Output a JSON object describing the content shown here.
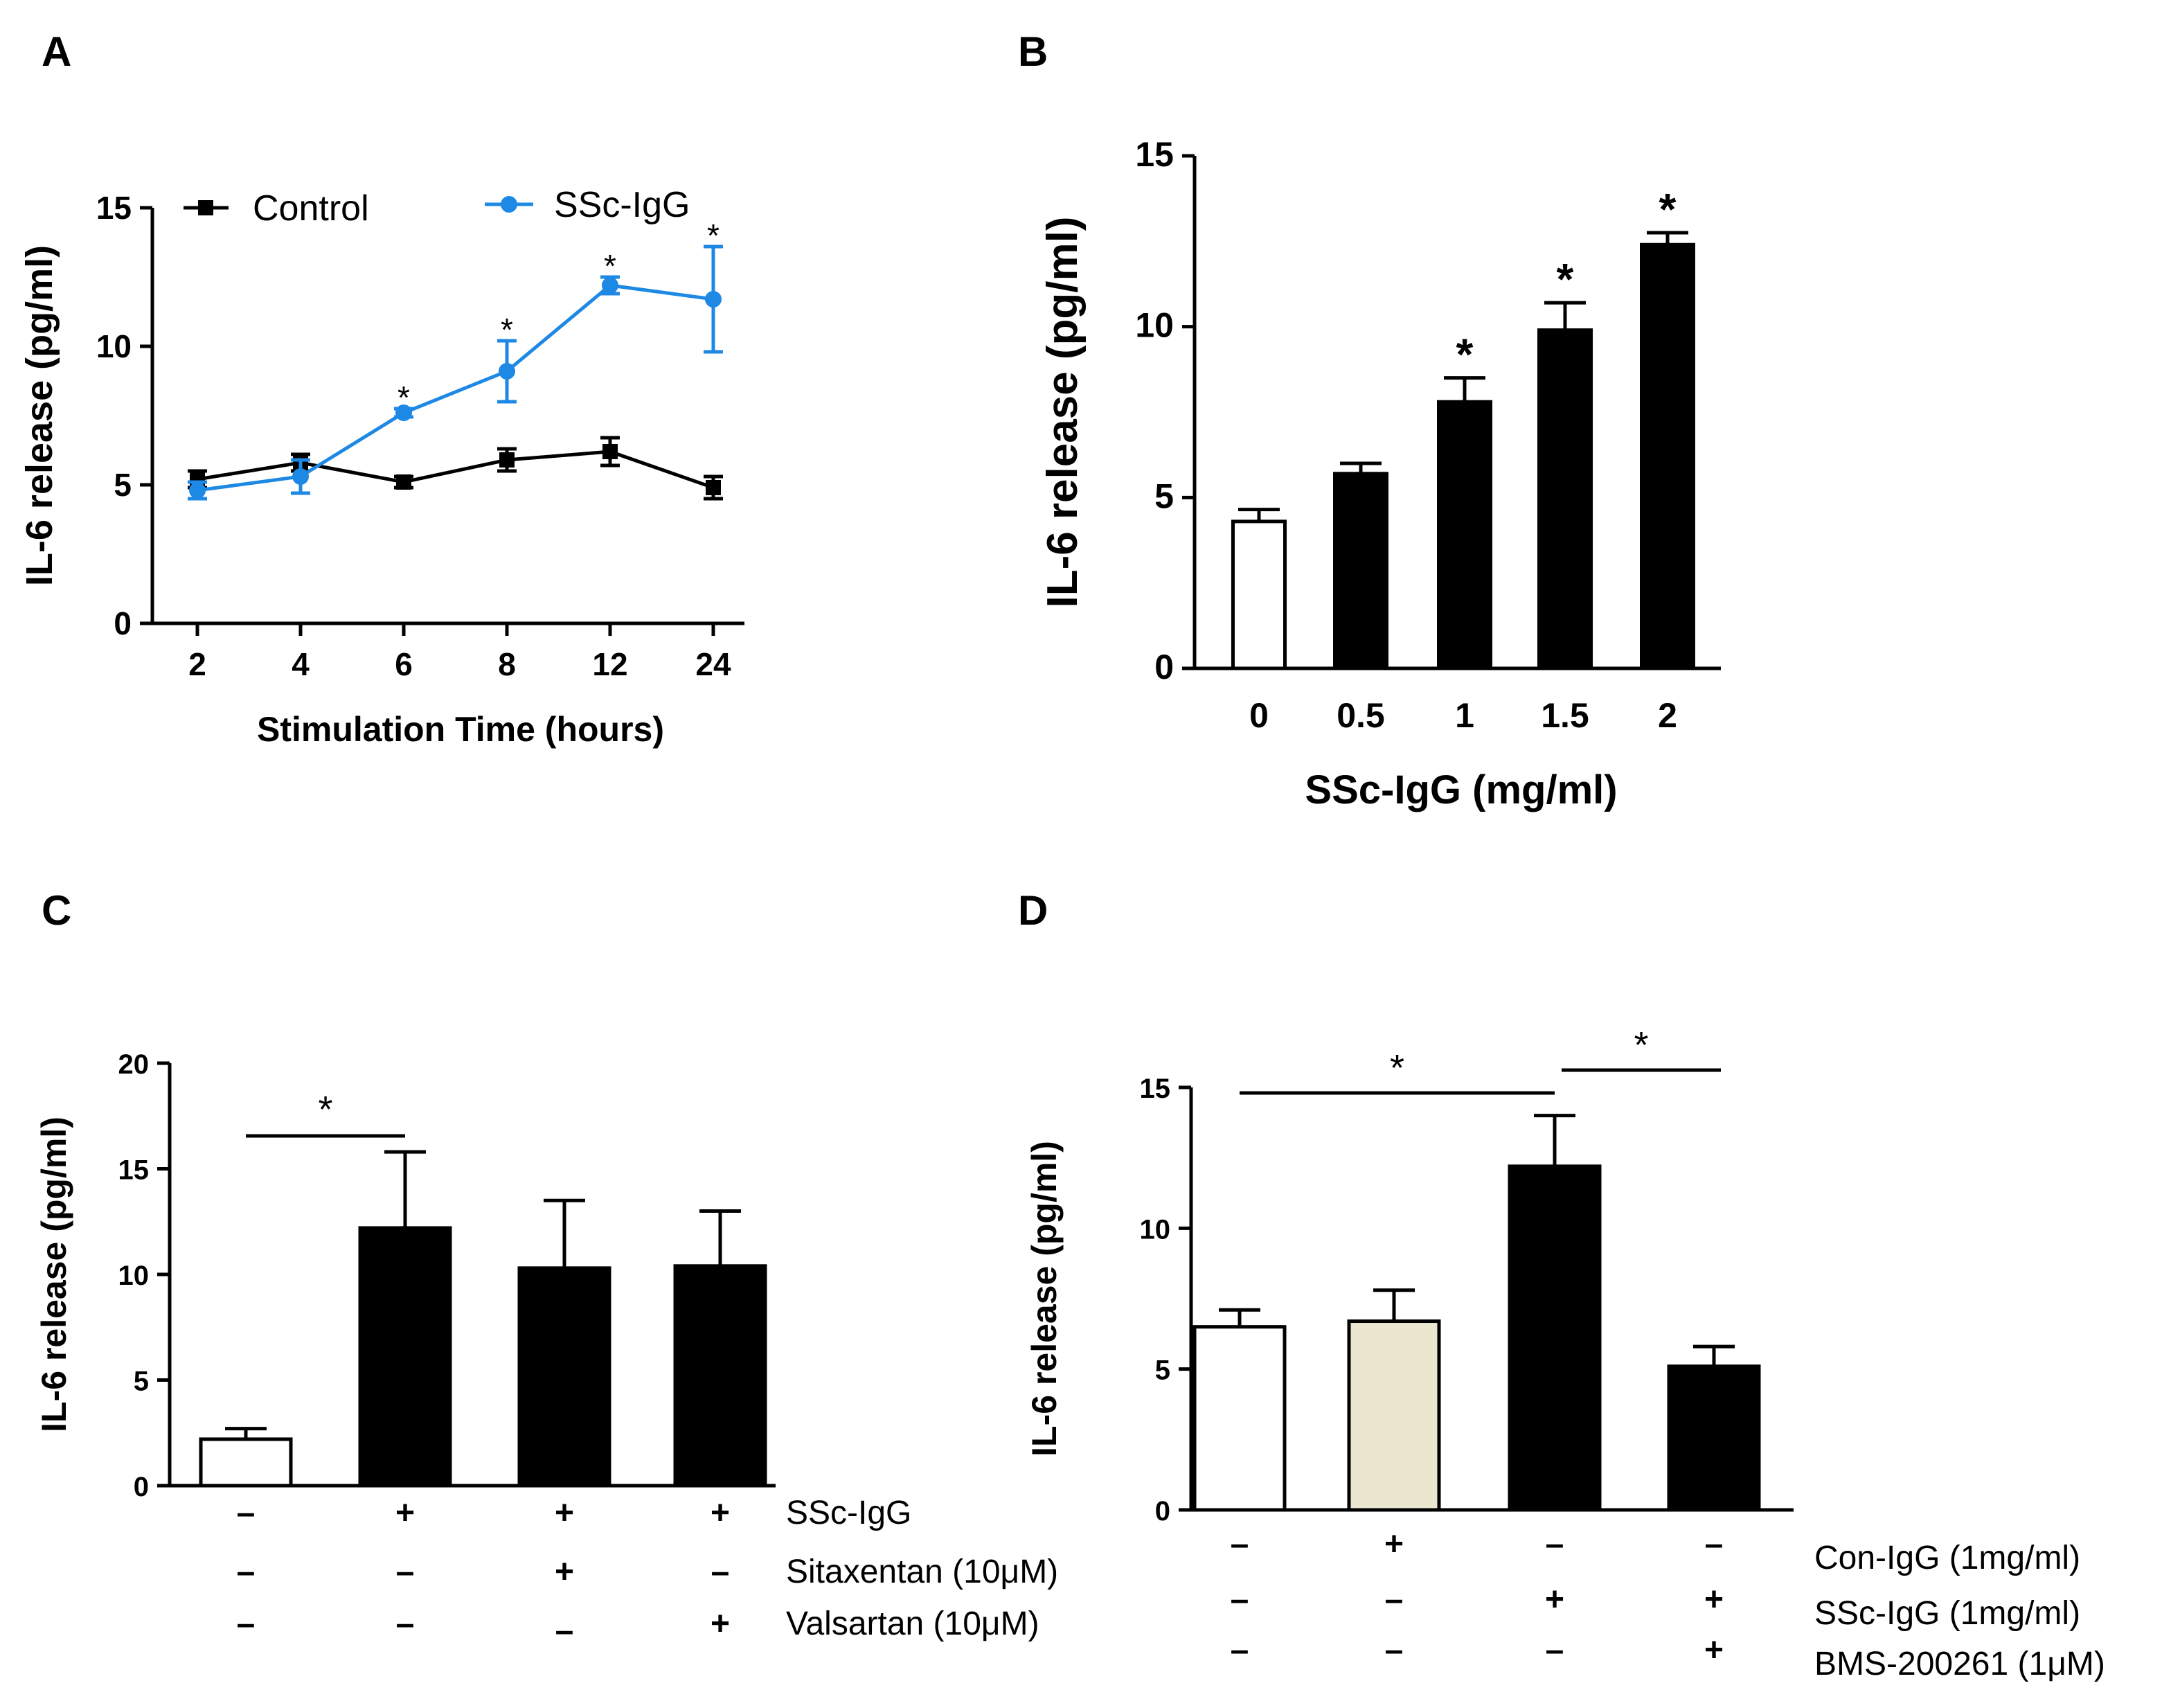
{
  "panels": {
    "A": "A",
    "B": "B",
    "C": "C",
    "D": "D"
  },
  "chart_data": [
    {
      "panel": "A",
      "type": "line",
      "xlabel": "Stimulation Time (hours)",
      "ylabel": "IL-6 release (pg/ml)",
      "ylim": [
        0,
        15
      ],
      "yticks": [
        "0",
        "5",
        "10",
        "15"
      ],
      "categories": [
        "2",
        "4",
        "6",
        "8",
        "12",
        "24"
      ],
      "legend_placement": "top",
      "series": [
        {
          "name": "Control",
          "color": "#000000",
          "marker": "square",
          "values": [
            5.2,
            5.8,
            5.1,
            5.9,
            6.2,
            4.9
          ],
          "errors": [
            0.3,
            0.3,
            0.2,
            0.4,
            0.5,
            0.4
          ]
        },
        {
          "name": "SSc-IgG",
          "color": "#1e88e5",
          "marker": "circle",
          "values": [
            4.8,
            5.3,
            7.6,
            9.1,
            12.2,
            11.7
          ],
          "errors": [
            0.3,
            0.6,
            0.15,
            1.1,
            0.3,
            1.9
          ]
        }
      ],
      "annotations": [
        {
          "category": "6",
          "text": "*"
        },
        {
          "category": "8",
          "text": "*"
        },
        {
          "category": "12",
          "text": "*"
        },
        {
          "category": "24",
          "text": "*"
        }
      ]
    },
    {
      "panel": "B",
      "type": "bar",
      "xlabel": "SSc-IgG (mg/ml)",
      "ylabel": "IL-6 release (pg/ml)",
      "ylim": [
        0,
        15
      ],
      "yticks": [
        "0",
        "5",
        "10",
        "15"
      ],
      "categories": [
        "0",
        "0.5",
        "1",
        "1.5",
        "2"
      ],
      "values": [
        4.3,
        5.7,
        7.8,
        9.9,
        12.4
      ],
      "errors": [
        0.35,
        0.3,
        0.7,
        0.8,
        0.35
      ],
      "fills": [
        "#ffffff",
        "#000000",
        "#000000",
        "#000000",
        "#000000"
      ],
      "annotations": [
        {
          "category": "1",
          "text": "*"
        },
        {
          "category": "1.5",
          "text": "*"
        },
        {
          "category": "2",
          "text": "*"
        }
      ]
    },
    {
      "panel": "C",
      "type": "bar",
      "ylabel": "IL-6 release (pg/ml)",
      "ylim": [
        0,
        20
      ],
      "yticks": [
        "0",
        "5",
        "10",
        "15",
        "20"
      ],
      "values": [
        2.2,
        12.2,
        10.3,
        10.4
      ],
      "errors": [
        0.5,
        3.6,
        3.2,
        2.6
      ],
      "fills": [
        "#ffffff",
        "#000000",
        "#000000",
        "#000000"
      ],
      "treatments": [
        {
          "name": "SSc-IgG",
          "signs": [
            "–",
            "+",
            "+",
            "+"
          ]
        },
        {
          "name": "Sitaxentan (10μM)",
          "signs": [
            "–",
            "–",
            "+",
            "–"
          ]
        },
        {
          "name": "Valsartan (10μM)",
          "signs": [
            "–",
            "–",
            "–",
            "+"
          ]
        }
      ],
      "brackets": [
        {
          "from": 0,
          "to": 1,
          "text": "*"
        }
      ]
    },
    {
      "panel": "D",
      "type": "bar",
      "ylabel": "IL-6 release (pg/ml)",
      "ylim": [
        0,
        15
      ],
      "yticks": [
        "0",
        "5",
        "10",
        "15"
      ],
      "values": [
        6.5,
        6.7,
        12.2,
        5.1
      ],
      "errors": [
        0.6,
        1.1,
        1.8,
        0.7
      ],
      "fills": [
        "#ffffff",
        "#ebe6cf",
        "#000000",
        "#000000"
      ],
      "treatments": [
        {
          "name": "Con-IgG (1mg/ml)",
          "signs": [
            "–",
            "+",
            "–",
            "–"
          ]
        },
        {
          "name": "SSc-IgG (1mg/ml)",
          "signs": [
            "–",
            "–",
            "+",
            "+"
          ]
        },
        {
          "name": "BMS-200261 (1μM)",
          "signs": [
            "–",
            "–",
            "–",
            "+"
          ]
        }
      ],
      "brackets": [
        {
          "from": 0,
          "to": 2,
          "text": "*"
        },
        {
          "from": 2,
          "to": 3,
          "text": "*"
        }
      ]
    }
  ]
}
